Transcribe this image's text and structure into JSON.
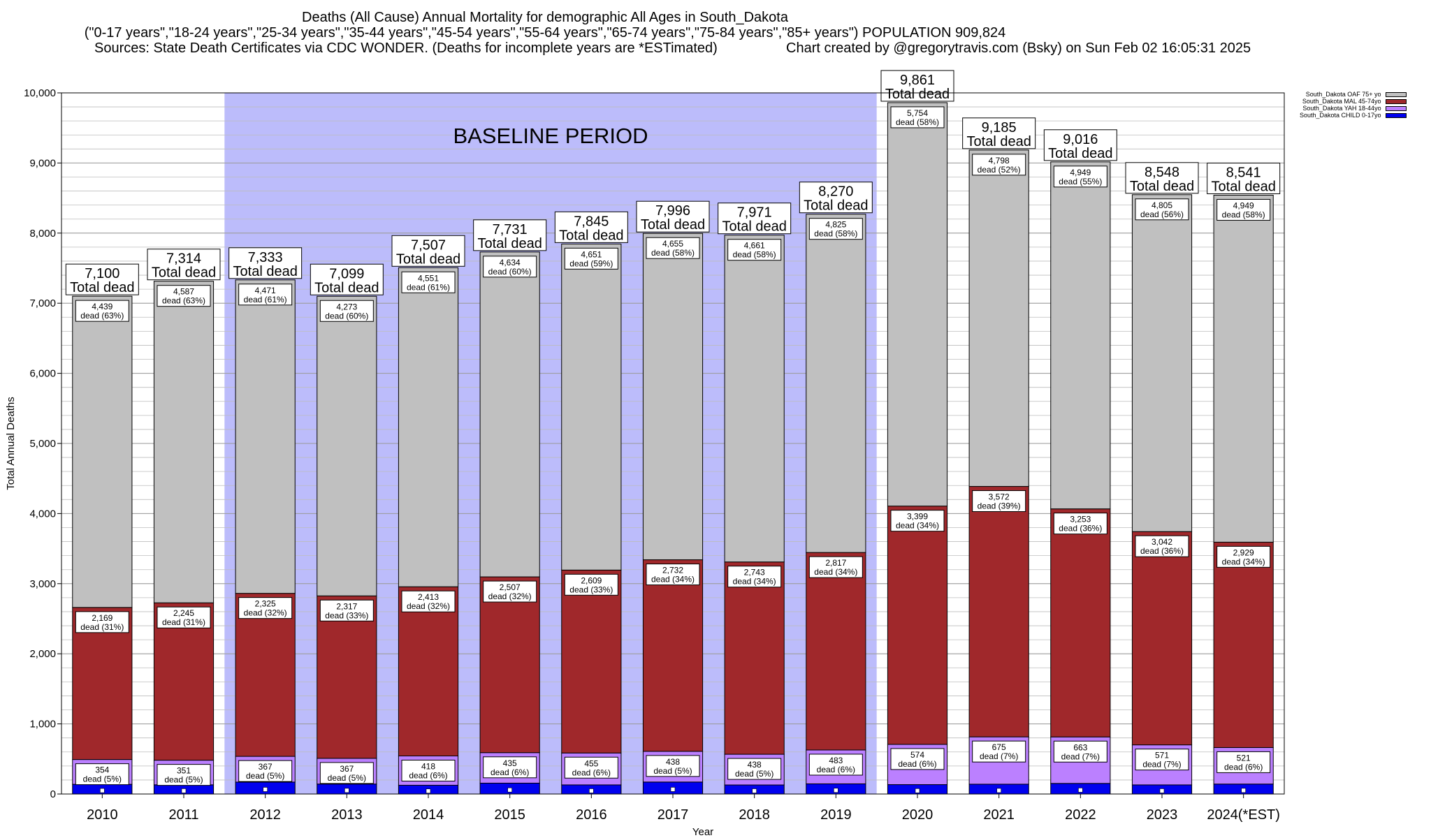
{
  "chart_data": {
    "type": "bar",
    "stacked": true,
    "title": "Deaths (All Cause) Annual Mortality for demographic All Ages in South_Dakota",
    "subtitle": "(\"0-17 years\",\"18-24 years\",\"25-34 years\",\"35-44 years\",\"45-54 years\",\"55-64 years\",\"65-74 years\",\"75-84 years\",\"85+ years\") POPULATION 909,824",
    "sources_left": "Sources: State Death Certificates via CDC WONDER. (Deaths for incomplete years are *ESTimated)",
    "sources_right": "Chart created by @gregorytravis.com (Bsky) on Sun Feb 02 16:05:31 2025",
    "xlabel": "Year",
    "ylabel": "Total Annual Deaths",
    "ylim": [
      0,
      10000
    ],
    "yticks": [
      0,
      1000,
      2000,
      3000,
      4000,
      5000,
      6000,
      7000,
      8000,
      9000,
      10000
    ],
    "ytick_labels": [
      "0",
      "1,000",
      "2,000",
      "3,000",
      "4,000",
      "5,000",
      "6,000",
      "7,000",
      "8,000",
      "9,000",
      "10,000"
    ],
    "grid": true,
    "legend_position": "top-right",
    "baseline_label": "BASELINE PERIOD",
    "baseline_range": [
      "2012",
      "2019"
    ],
    "baseline_color": "#bcbcfb",
    "total_suffix": "Total dead",
    "categories": [
      "2010",
      "2011",
      "2012",
      "2013",
      "2014",
      "2015",
      "2016",
      "2017",
      "2018",
      "2019",
      "2020",
      "2021",
      "2022",
      "2023",
      "2024(*EST)"
    ],
    "totals": [
      7100,
      7314,
      7333,
      7099,
      7507,
      7731,
      7845,
      7996,
      7971,
      8270,
      9861,
      9185,
      9016,
      8548,
      8541
    ],
    "total_labels": [
      "7,100",
      "7,314",
      "7,333",
      "7,099",
      "7,507",
      "7,731",
      "7,845",
      "7,996",
      "7,971",
      "8,270",
      "9,861",
      "9,185",
      "9,016",
      "8,548",
      "8,541"
    ],
    "series": [
      {
        "name": "South_Dakota CHILD 0-17yo",
        "color": "#0000ee",
        "values": [
          138,
          131,
          170,
          142,
          125,
          155,
          130,
          171,
          129,
          145,
          134,
          140,
          151,
          130,
          142
        ]
      },
      {
        "name": "South_Dakota YAH 18-44yo",
        "color": "#bb80ff",
        "values": [
          354,
          351,
          367,
          367,
          418,
          435,
          455,
          438,
          438,
          483,
          574,
          675,
          663,
          571,
          521
        ],
        "labels": [
          "354\ndead (5%)",
          "351\ndead (5%)",
          "367\ndead (5%)",
          "367\ndead (5%)",
          "418\ndead (6%)",
          "435\ndead (6%)",
          "455\ndead (6%)",
          "438\ndead (5%)",
          "438\ndead (5%)",
          "483\ndead (6%)",
          "574\ndead (6%)",
          "675\ndead (7%)",
          "663\ndead (7%)",
          "571\ndead (7%)",
          "521\ndead (6%)"
        ]
      },
      {
        "name": "South_Dakota MAL 45-74yo",
        "color": "#a0282b",
        "values": [
          2169,
          2245,
          2325,
          2317,
          2413,
          2507,
          2609,
          2732,
          2743,
          2817,
          3399,
          3572,
          3253,
          3042,
          2929
        ],
        "labels": [
          "2,169\ndead (31%)",
          "2,245\ndead (31%)",
          "2,325\ndead (32%)",
          "2,317\ndead (33%)",
          "2,413\ndead (32%)",
          "2,507\ndead (32%)",
          "2,609\ndead (33%)",
          "2,732\ndead (34%)",
          "2,743\ndead (34%)",
          "2,817\ndead (34%)",
          "3,399\ndead (34%)",
          "3,572\ndead (39%)",
          "3,253\ndead (36%)",
          "3,042\ndead (36%)",
          "2,929\ndead (34%)"
        ]
      },
      {
        "name": "South_Dakota OAF 75+ yo",
        "color": "#c0c0c0",
        "values": [
          4439,
          4587,
          4471,
          4273,
          4551,
          4634,
          4651,
          4655,
          4661,
          4825,
          5754,
          4798,
          4949,
          4805,
          4949
        ],
        "labels": [
          "4,439\ndead (63%)",
          "4,587\ndead (63%)",
          "4,471\ndead (61%)",
          "4,273\ndead (60%)",
          "4,551\ndead (61%)",
          "4,634\ndead (60%)",
          "4,651\ndead (59%)",
          "4,655\ndead (58%)",
          "4,661\ndead (58%)",
          "4,825\ndead (58%)",
          "5,754\ndead (58%)",
          "4,798\ndead (52%)",
          "4,949\ndead (55%)",
          "4,805\ndead (56%)",
          "4,949\ndead (58%)"
        ]
      }
    ],
    "legend_order": [
      "South_Dakota OAF 75+ yo",
      "South_Dakota MAL 45-74yo",
      "South_Dakota YAH 18-44yo",
      "South_Dakota CHILD 0-17yo"
    ]
  }
}
